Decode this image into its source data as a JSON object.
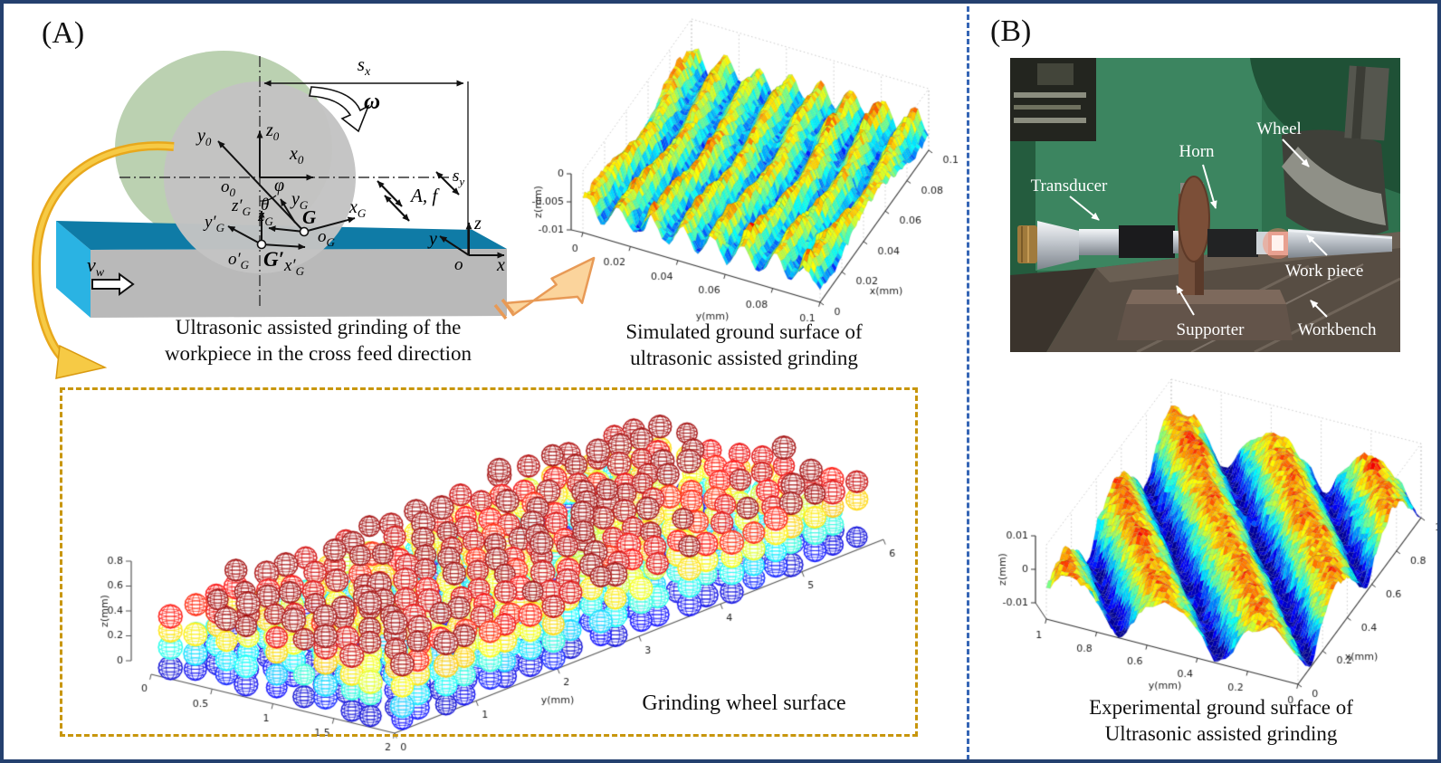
{
  "panels": {
    "a_label": "(A)",
    "b_label": "(B)"
  },
  "schematic": {
    "caption": {
      "line1": "Ultrasonic assisted grinding of the",
      "line2": "workpiece in the cross feed direction"
    },
    "labels": {
      "s_x": {
        "base": "s",
        "sub": "x"
      },
      "omega": "ω",
      "z0": {
        "base": "z",
        "sub": "0"
      },
      "y0": {
        "base": "y",
        "sub": "0"
      },
      "x0": {
        "base": "x",
        "sub": "0"
      },
      "o0": {
        "base": "o",
        "sub": "0"
      },
      "phi": "φ",
      "theta": "θ",
      "y_g": {
        "base": "y",
        "sub": "G"
      },
      "x_g": {
        "base": "x",
        "sub": "G"
      },
      "z_g": {
        "base": "z",
        "sub": "G"
      },
      "o_g": {
        "base": "o",
        "sub": "G"
      },
      "g": "G",
      "y_gp": {
        "base": "y′",
        "sub": "G"
      },
      "x_gp": {
        "base": "x′",
        "sub": "G"
      },
      "z_gp": {
        "base": "z′",
        "sub": "G"
      },
      "o_gp": {
        "base": "o′",
        "sub": "G"
      },
      "g_prime": "G′",
      "a_f": "A, f",
      "s_y": {
        "base": "s",
        "sub": "y"
      },
      "v_w": {
        "base": "v",
        "sub": "w"
      },
      "x": "x",
      "y": "y",
      "z": "z",
      "o": "o"
    }
  },
  "captions": {
    "simulated": {
      "line1": "Simulated ground surface of",
      "line2": "ultrasonic assisted grinding"
    },
    "wheel": "Grinding wheel surface",
    "experimental": {
      "line1": "Experimental ground surface of",
      "line2": "Ultrasonic assisted grinding"
    }
  },
  "photo": {
    "labels": {
      "transducer": "Transducer",
      "horn": "Horn",
      "wheel": "Wheel",
      "workpiece": "Work piece",
      "supporter": "Supporter",
      "workbench": "Workbench"
    }
  },
  "chart_data": [
    {
      "id": "simulated-ground-surface",
      "type": "surface",
      "xlabel": "x(mm)",
      "ylabel": "y(mm)",
      "zlabel": "z(mm)",
      "x_ticks": [
        "0",
        "0.02",
        "0.04",
        "0.06",
        "0.08",
        "0.1"
      ],
      "y_ticks": [
        "0",
        "0.02",
        "0.04",
        "0.06",
        "0.08",
        "0.1"
      ],
      "z_ticks": [
        "-0.01",
        "-0.005",
        "0"
      ],
      "xlim": [
        0,
        0.1
      ],
      "ylim": [
        0,
        0.1
      ],
      "zlim": [
        -0.01,
        0
      ],
      "colormap": "jet",
      "grid": true,
      "description": "Simulated rough ground surface, ridges parallel to the x axis"
    },
    {
      "id": "grinding-wheel-surface",
      "type": "scatter",
      "marker": "wireframe-sphere",
      "xlabel": "",
      "ylabel": "y(mm)",
      "zlabel": "z(mm)",
      "x_ticks": [
        "0",
        "0.5",
        "1",
        "1.5",
        "2"
      ],
      "y_ticks": [
        "0",
        "1",
        "2",
        "3",
        "4",
        "5",
        "6"
      ],
      "z_ticks": [
        "0",
        "0.2",
        "0.4",
        "0.6",
        "0.8"
      ],
      "xlim": [
        0,
        2
      ],
      "ylim": [
        0,
        6
      ],
      "zlim": [
        0,
        0.8
      ],
      "colormap": "jet",
      "description": "Abrasive grains of the grinding wheel shown as wireframe spheres colored by height, blue bottom layer to red top layer"
    },
    {
      "id": "experimental-ground-surface",
      "type": "surface",
      "xlabel": "x(mm)",
      "ylabel": "y(mm)",
      "zlabel": "z(mm)",
      "x_ticks": [
        "0",
        "0.2",
        "0.4",
        "0.6",
        "0.8",
        "1"
      ],
      "y_ticks": [
        "1",
        "0.8",
        "0.6",
        "0.4",
        "0.2",
        "0"
      ],
      "z_ticks": [
        "-0.01",
        "0",
        "0.01"
      ],
      "xlim": [
        0,
        1
      ],
      "ylim": [
        0,
        1
      ],
      "zlim": [
        -0.01,
        0.01
      ],
      "colormap": "jet",
      "grid": true,
      "description": "Measured ground surface with diagonal grinding ridges"
    }
  ],
  "colors": {
    "outer_border": "#24406e",
    "divider_blue": "#3565b5",
    "dashed_box_gold": "#c8960c",
    "yellow_arrow": "#f0b82c",
    "orange_arrow_fill": "#fbd49c",
    "orange_arrow_stroke": "#e89a56",
    "workpiece_top": "#0f7ba6",
    "workpiece_side": "#2ab3e3",
    "workpiece_front": "#b9b9b9",
    "wheel_face": "#c3c3c3",
    "wheel_rim_green": "#b7cfad",
    "machine_green": "#2e714e"
  }
}
